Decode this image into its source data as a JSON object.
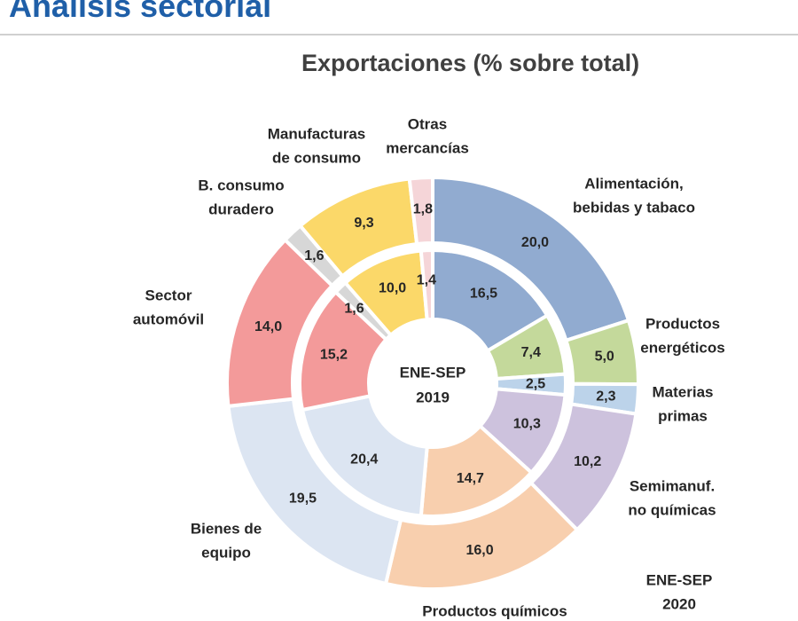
{
  "header": {
    "title": "Análisis sectorial"
  },
  "chart_data": {
    "type": "donut",
    "title": "Exportaciones (% sobre total)",
    "center_label": [
      "ENE-SEP",
      "2019"
    ],
    "outer_ring_label": [
      "ENE-SEP",
      "2020"
    ],
    "categories": [
      {
        "name": "Alimentación, bebidas y tabaco",
        "label_lines": [
          "Alimentación,",
          "bebidas y tabaco"
        ],
        "color": "#91abd0",
        "v2019": 16.5,
        "v2020": 20.0,
        "l2019": "16,5",
        "l2020": "20,0"
      },
      {
        "name": "Productos energéticos",
        "label_lines": [
          "Productos",
          "energéticos"
        ],
        "color": "#c4d99b",
        "v2019": 7.4,
        "v2020": 5.0,
        "l2019": "7,4",
        "l2020": "5,0"
      },
      {
        "name": "Materias primas",
        "label_lines": [
          "Materias",
          "primas"
        ],
        "color": "#bcd3ea",
        "v2019": 2.5,
        "v2020": 2.3,
        "l2019": "2,5",
        "l2020": "2,3"
      },
      {
        "name": "Semimanuf. no químicas",
        "label_lines": [
          "Semimanuf.",
          "no químicas"
        ],
        "color": "#cdc2dd",
        "v2019": 10.3,
        "v2020": 10.2,
        "l2019": "10,3",
        "l2020": "10,2"
      },
      {
        "name": "Productos químicos",
        "label_lines": [
          "Productos químicos"
        ],
        "color": "#f8cfae",
        "v2019": 14.7,
        "v2020": 16.0,
        "l2019": "14,7",
        "l2020": "16,0"
      },
      {
        "name": "Bienes de equipo",
        "label_lines": [
          "Bienes de",
          "equipo"
        ],
        "color": "#dce5f2",
        "v2019": 20.4,
        "v2020": 19.5,
        "l2019": "20,4",
        "l2020": "19,5"
      },
      {
        "name": "Sector automóvil",
        "label_lines": [
          "Sector",
          "automóvil"
        ],
        "color": "#f39a9a",
        "v2019": 15.2,
        "v2020": 14.0,
        "l2019": "15,2",
        "l2020": "14,0"
      },
      {
        "name": "B. consumo duradero",
        "label_lines": [
          "B. consumo",
          "duradero"
        ],
        "color": "#d7d7d7",
        "v2019": 1.6,
        "v2020": 1.6,
        "l2019": "1,6",
        "l2020": "1,6"
      },
      {
        "name": "Manufacturas de consumo",
        "label_lines": [
          "Manufacturas",
          "de consumo"
        ],
        "color": "#fbd869",
        "v2019": 10.0,
        "v2020": 9.3,
        "l2019": "10,0",
        "l2020": "9,3"
      },
      {
        "name": "Otras mercancías",
        "label_lines": [
          "Otras",
          "mercancías"
        ],
        "color": "#f5d5d8",
        "v2019": 1.4,
        "v2020": 1.8,
        "l2019": "1,4",
        "l2020": "1,8"
      }
    ]
  }
}
